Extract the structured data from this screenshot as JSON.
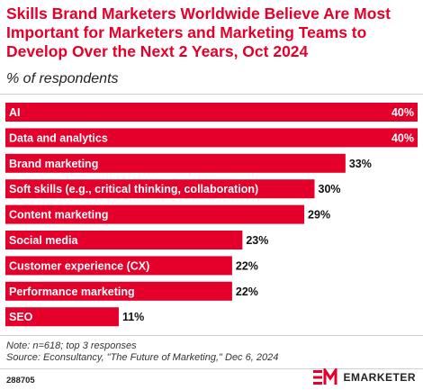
{
  "title": "Skills Brand Marketers Worldwide Believe Are Most Important for Marketers and Marketing Teams to Develop Over the Next 2 Years, Oct 2024",
  "subtitle": "% of respondents",
  "note": "Note: n=618; top 3 responses",
  "source": "Source: Econsultancy, \"The Future of Marketing,\" Dec 6, 2024",
  "chart_id": "288705",
  "brand": "EMARKETER",
  "colors": {
    "bar": "#e4002b",
    "title": "#e4002b",
    "text": "#222222"
  },
  "chart_data": {
    "type": "bar",
    "orientation": "horizontal",
    "categories": [
      "AI",
      "Data and analytics",
      "Brand marketing",
      "Soft skills (e.g., critical thinking, collaboration)",
      "Content marketing",
      "Social media",
      "Customer experience (CX)",
      "Performance marketing",
      "SEO"
    ],
    "values": [
      40,
      40,
      33,
      30,
      29,
      23,
      22,
      22,
      11
    ],
    "value_labels": [
      "40%",
      "40%",
      "33%",
      "30%",
      "29%",
      "23%",
      "22%",
      "22%",
      "11%"
    ],
    "xlim": [
      0,
      40
    ],
    "grid": false
  }
}
